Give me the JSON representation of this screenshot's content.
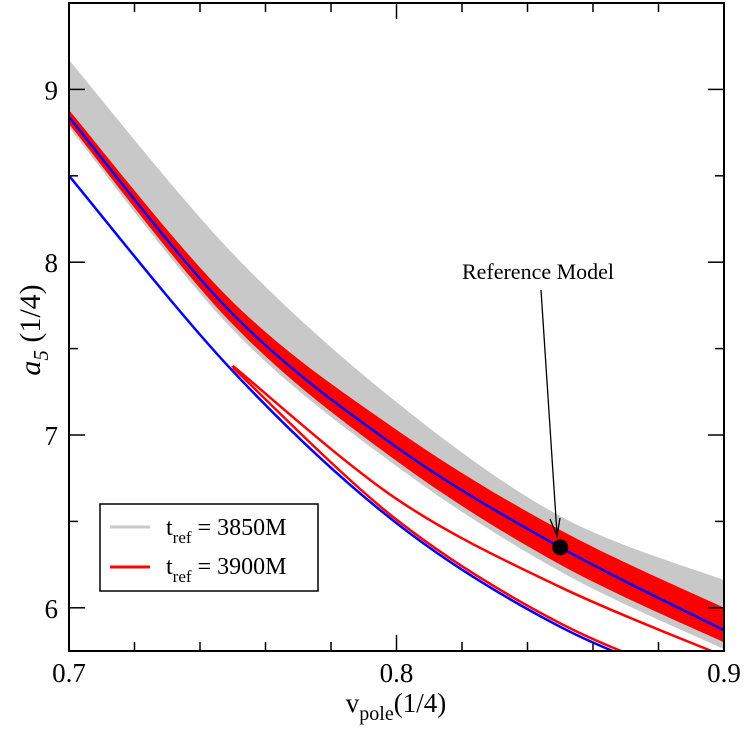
{
  "chart_data": {
    "type": "line",
    "xlabel": {
      "main": "v",
      "sub": "pole",
      "suffix": "(1/4)"
    },
    "ylabel": {
      "main": "a",
      "sub": "5",
      "suffix": " (1/4)"
    },
    "xlim": [
      0.7,
      0.9
    ],
    "ylim": [
      5.75,
      9.5
    ],
    "xticks": [
      0.7,
      0.8,
      0.9
    ],
    "xtick_labels": [
      "0.7",
      "0.8",
      "0.9"
    ],
    "yticks": [
      6,
      7,
      8,
      9
    ],
    "ytick_labels": [
      "6",
      "7",
      "8",
      "9"
    ],
    "x_minor_step": 0.02,
    "y_minor_step": 0.5,
    "grid": false,
    "x": [
      0.7,
      0.75,
      0.8,
      0.85,
      0.9
    ],
    "bands": [
      {
        "name": "t_ref = 3850M",
        "color": "#c8c8c8",
        "upper": [
          9.17,
          8.05,
          7.19,
          6.53,
          6.16
        ],
        "lower": [
          8.78,
          7.61,
          6.82,
          6.21,
          5.76
        ]
      },
      {
        "name": "t_ref = 3900M",
        "color": "#ff0000",
        "upper": [
          8.88,
          7.77,
          7.03,
          6.45,
          6.0
        ],
        "lower": [
          8.8,
          7.64,
          6.85,
          6.25,
          5.8
        ]
      }
    ],
    "lines": [
      {
        "color": "#0000ff",
        "x": [
          0.7,
          0.75,
          0.8,
          0.85,
          0.9
        ],
        "y": [
          8.84,
          7.7,
          6.93,
          6.35,
          5.87
        ]
      },
      {
        "color": "#0000ff",
        "x": [
          0.7,
          0.75,
          0.8,
          0.85,
          0.9
        ],
        "y": [
          8.5,
          7.37,
          6.49,
          5.89,
          5.5
        ]
      },
      {
        "color": "#ff0000",
        "x": [
          0.75,
          0.8,
          0.85,
          0.9
        ],
        "y": [
          7.4,
          6.63,
          6.12,
          5.72
        ]
      },
      {
        "color": "#ff0000",
        "x": [
          0.75,
          0.8,
          0.85,
          0.9
        ],
        "y": [
          7.39,
          6.51,
          5.91,
          5.52
        ]
      }
    ],
    "reference_point": {
      "x": 0.85,
      "y": 6.35,
      "label": "Reference Model"
    },
    "legend": {
      "placement": "bottom-left",
      "entries": [
        {
          "main": "t",
          "sub": "ref",
          "value": " = 3850M",
          "color": "#c8c8c8"
        },
        {
          "main": "t",
          "sub": "ref",
          "value": " = 3900M",
          "color": "#ff0000"
        }
      ]
    }
  }
}
